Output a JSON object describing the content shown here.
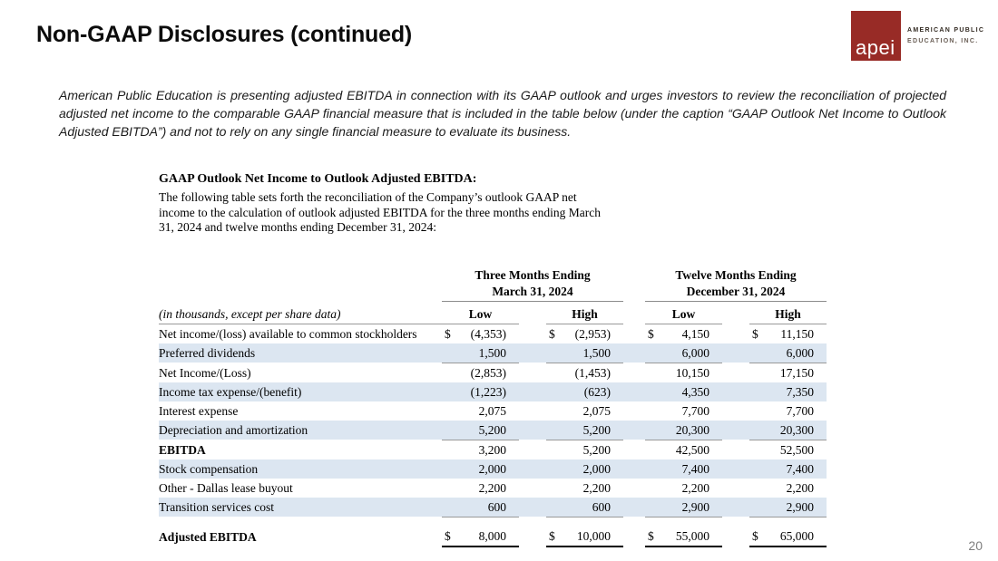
{
  "header": {
    "title": "Non-GAAP Disclosures (continued)"
  },
  "logo": {
    "mark": "apei",
    "line1": "AMERICAN PUBLIC",
    "line2": "EDUCATION, INC.",
    "brand_color": "#982b26"
  },
  "disclaimer": "American Public Education is presenting adjusted EBITDA in connection with its GAAP outlook and urges investors to review the reconciliation of projected adjusted net income to the comparable GAAP financial measure that is included in the table below (under the caption “GAAP Outlook Net Income to Outlook Adjusted EBITDA”) and not to rely on any single financial measure to evaluate its business.",
  "section": {
    "heading": "GAAP Outlook Net Income to Outlook Adjusted EBITDA:",
    "intro": "The following table sets forth the reconciliation of the Company’s outlook GAAP net income to the calculation of outlook adjusted EBITDA for the three months ending March 31, 2024 and twelve months ending December 31, 2024:"
  },
  "table": {
    "note": "(in thousands, except per share data)",
    "stripe_color": "#dce6f1",
    "groups": [
      {
        "line1": "Three Months Ending",
        "line2": "March 31, 2024"
      },
      {
        "line1": "Twelve Months Ending",
        "line2": "December 31, 2024"
      }
    ],
    "sub_headers": [
      "Low",
      "High",
      "Low",
      "High"
    ],
    "rows": [
      {
        "label": "Net income/(loss) available to common stockholders",
        "values": [
          "(4,353)",
          "(2,953)",
          "4,150",
          "11,150"
        ],
        "dollar": true,
        "bold": false,
        "shaded": false,
        "underline": false,
        "total": false
      },
      {
        "label": "Preferred dividends",
        "values": [
          "1,500",
          "1,500",
          "6,000",
          "6,000"
        ],
        "dollar": false,
        "bold": false,
        "shaded": true,
        "underline": true,
        "total": false
      },
      {
        "label": "Net Income/(Loss)",
        "values": [
          "(2,853)",
          "(1,453)",
          "10,150",
          "17,150"
        ],
        "dollar": false,
        "bold": false,
        "shaded": false,
        "underline": false,
        "total": false
      },
      {
        "label": "Income tax expense/(benefit)",
        "values": [
          "(1,223)",
          "(623)",
          "4,350",
          "7,350"
        ],
        "dollar": false,
        "bold": false,
        "shaded": true,
        "underline": false,
        "total": false
      },
      {
        "label": "Interest expense",
        "values": [
          "2,075",
          "2,075",
          "7,700",
          "7,700"
        ],
        "dollar": false,
        "bold": false,
        "shaded": false,
        "underline": false,
        "total": false
      },
      {
        "label": "Depreciation and amortization",
        "values": [
          "5,200",
          "5,200",
          "20,300",
          "20,300"
        ],
        "dollar": false,
        "bold": false,
        "shaded": true,
        "underline": true,
        "total": false
      },
      {
        "label": "EBITDA",
        "values": [
          "3,200",
          "5,200",
          "42,500",
          "52,500"
        ],
        "dollar": false,
        "bold": true,
        "shaded": false,
        "underline": false,
        "total": false
      },
      {
        "label": "Stock compensation",
        "values": [
          "2,000",
          "2,000",
          "7,400",
          "7,400"
        ],
        "dollar": false,
        "bold": false,
        "shaded": true,
        "underline": false,
        "total": false
      },
      {
        "label": "Other - Dallas lease buyout",
        "values": [
          "2,200",
          "2,200",
          "2,200",
          "2,200"
        ],
        "dollar": false,
        "bold": false,
        "shaded": false,
        "underline": false,
        "total": false
      },
      {
        "label": "Transition services cost",
        "values": [
          "600",
          "600",
          "2,900",
          "2,900"
        ],
        "dollar": false,
        "bold": false,
        "shaded": true,
        "underline": true,
        "total": false
      },
      {
        "label": "Adjusted EBITDA",
        "values": [
          "8,000",
          "10,000",
          "55,000",
          "65,000"
        ],
        "dollar": true,
        "bold": true,
        "shaded": false,
        "underline": false,
        "total": true
      }
    ]
  },
  "page_number": "20"
}
